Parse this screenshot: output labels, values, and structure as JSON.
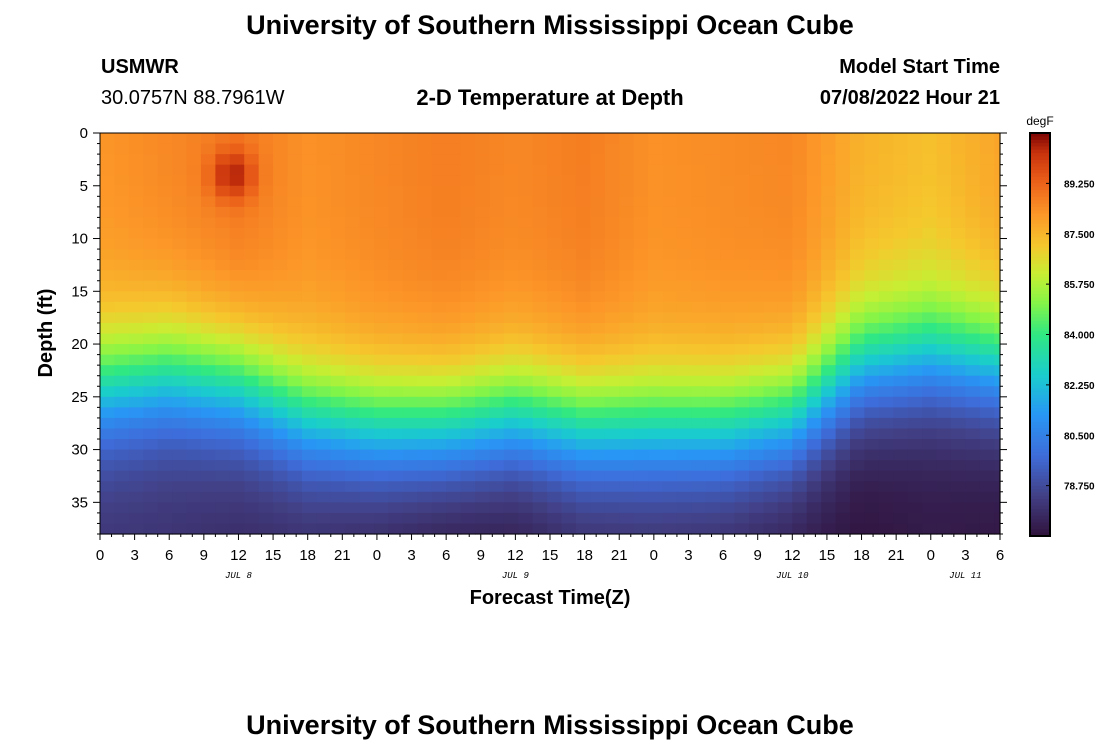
{
  "page": {
    "title_top": "University of Southern Mississippi Ocean Cube",
    "title_bottom": "University of Southern Mississippi Ocean Cube",
    "station": "USMWR",
    "coords": "30.0757N  88.7961W",
    "subtitle": "2-D Temperature at Depth",
    "model_start_label": "Model Start Time",
    "model_start_value": "07/08/2022 Hour 21"
  },
  "chart_data": {
    "type": "heatmap",
    "title": "2-D Temperature at Depth",
    "xlabel": "Forecast Time(Z)",
    "ylabel": "Depth (ft)",
    "x_ticks": [
      "0",
      "3",
      "6",
      "9",
      "12",
      "15",
      "18",
      "21",
      "0",
      "3",
      "6",
      "9",
      "12",
      "15",
      "18",
      "21",
      "0",
      "3",
      "6",
      "9",
      "12",
      "15",
      "18",
      "21",
      "0",
      "3",
      "6"
    ],
    "x_range_hours": [
      0,
      78
    ],
    "date_labels": [
      {
        "label": "JUL 8",
        "hour": 12
      },
      {
        "label": "JUL 9",
        "hour": 36
      },
      {
        "label": "JUL 10",
        "hour": 60
      },
      {
        "label": "JUL 11",
        "hour": 75
      }
    ],
    "y_ticks": [
      "0",
      "5",
      "10",
      "15",
      "20",
      "25",
      "30",
      "35"
    ],
    "y_range_ft": [
      0,
      38
    ],
    "colorbar": {
      "unit": "degF",
      "ticks": [
        "89.250",
        "87.500",
        "85.750",
        "84.000",
        "82.250",
        "80.500",
        "78.750"
      ],
      "range": [
        77.0,
        91.0
      ]
    },
    "time_hours": [
      0,
      6,
      12,
      18,
      24,
      30,
      36,
      42,
      48,
      54,
      60,
      66,
      72,
      78
    ],
    "surface_temp_F": [
      88.2,
      88.5,
      88.8,
      88.3,
      88.5,
      88.7,
      88.5,
      88.7,
      88.3,
      88.4,
      88.5,
      87.6,
      87.3,
      87.9
    ],
    "thermocline_ft": [
      24,
      23,
      24,
      27,
      28,
      28,
      27,
      28,
      28,
      28,
      27,
      22,
      21,
      22
    ],
    "deep_temp_F": [
      78.0,
      77.9,
      77.7,
      77.6,
      77.3,
      77.0,
      77.1,
      77.5,
      77.6,
      77.5,
      77.2,
      77.0,
      77.2,
      77.1
    ],
    "hotspot": {
      "hour": 11.5,
      "depth_ft": 4,
      "temp_F": 90.6
    }
  }
}
